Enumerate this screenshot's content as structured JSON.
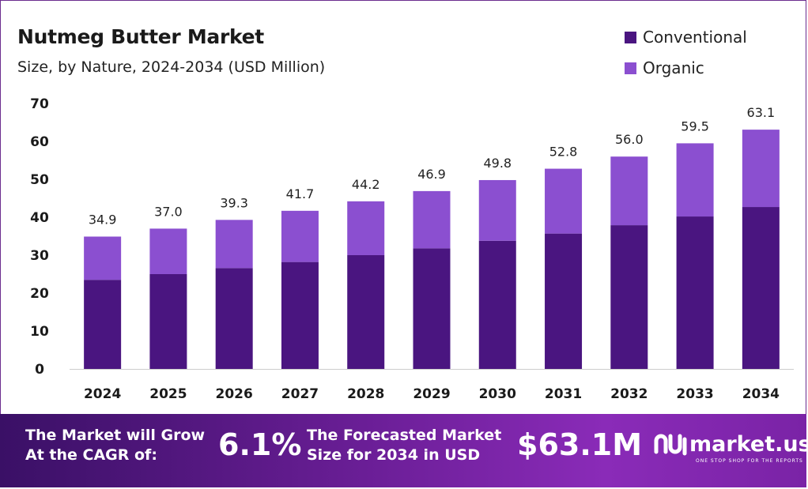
{
  "header": {
    "title": "Nutmeg Butter Market",
    "subtitle": "Size, by Nature, 2024-2034 (USD Million)"
  },
  "legend": {
    "items": [
      {
        "label": "Conventional",
        "color": "#4a1580"
      },
      {
        "label": "Organic",
        "color": "#8b4fd0"
      }
    ]
  },
  "chart_data": {
    "type": "bar",
    "stacked": true,
    "title": "Nutmeg Butter Market",
    "subtitle": "Size, by Nature, 2024-2034 (USD Million)",
    "categories": [
      "2024",
      "2025",
      "2026",
      "2027",
      "2028",
      "2029",
      "2030",
      "2031",
      "2032",
      "2033",
      "2034"
    ],
    "series": [
      {
        "name": "Conventional",
        "color": "#4a1580",
        "values": [
          23.5,
          25.0,
          26.6,
          28.2,
          30.0,
          31.8,
          33.8,
          35.7,
          37.9,
          40.2,
          42.7
        ]
      },
      {
        "name": "Organic",
        "color": "#8b4fd0",
        "values": [
          11.4,
          12.0,
          12.7,
          13.5,
          14.2,
          15.1,
          16.0,
          17.1,
          18.1,
          19.3,
          20.4
        ]
      }
    ],
    "totals": [
      "34.9",
      "37.0",
      "39.3",
      "41.7",
      "44.2",
      "46.9",
      "49.8",
      "52.8",
      "56.0",
      "59.5",
      "63.1"
    ],
    "ylim": [
      0,
      70
    ],
    "yticks": [
      "0",
      "10",
      "20",
      "30",
      "40",
      "50",
      "60",
      "70"
    ],
    "grid": false,
    "legend_position": "top-right"
  },
  "banner": {
    "cagr_text_line1": "The Market will Grow",
    "cagr_text_line2": "At the CAGR of:",
    "cagr_value": "6.1%",
    "forecast_text_line1": "The Forecasted Market",
    "forecast_text_line2": "Size for 2034 in USD",
    "forecast_value": "$63.1M",
    "logo_text": "market.us",
    "logo_tagline": "ONE STOP SHOP FOR THE REPORTS"
  }
}
